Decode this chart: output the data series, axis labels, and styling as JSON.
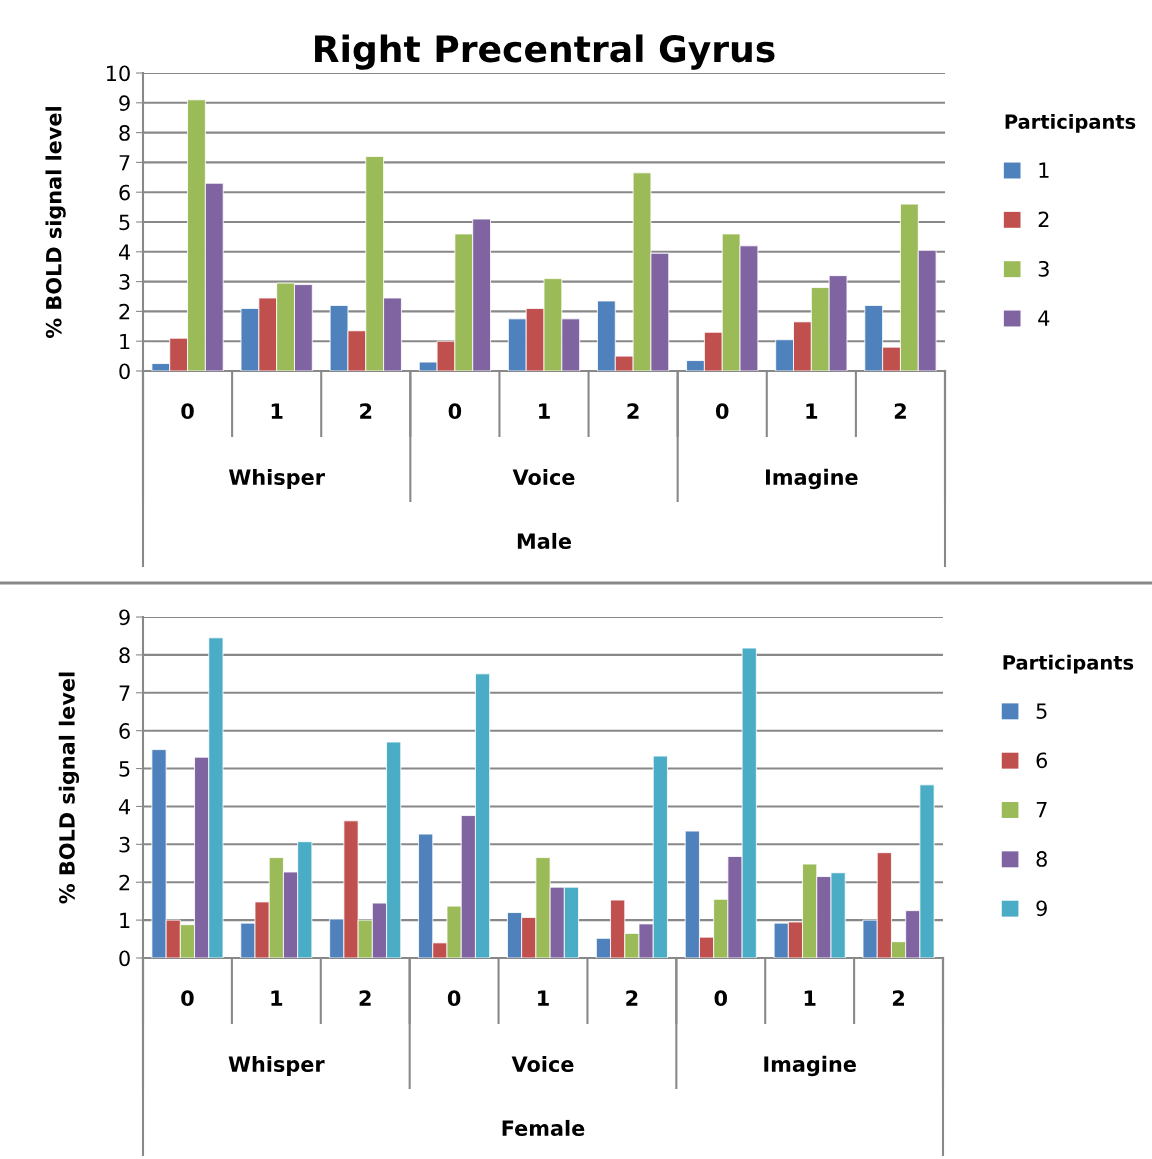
{
  "chart_data": [
    {
      "type": "bar",
      "title": "Right Precentral Gyrus",
      "ylabel": "% BOLD signal level",
      "xlabel": "Male",
      "legend_title": "Participants",
      "legend": "right",
      "categories": [
        "0",
        "1",
        "2",
        "0",
        "1",
        "2",
        "0",
        "1",
        "2"
      ],
      "annotations": [
        "Whisper",
        "Voice",
        "Imagine"
      ],
      "ylim": [
        0,
        10
      ],
      "yticks": [
        0,
        1,
        2,
        3,
        4,
        5,
        6,
        7,
        8,
        9,
        10
      ],
      "grid": "y",
      "series": [
        {
          "name": "1",
          "color": "#4f81bd",
          "values": [
            0.25,
            2.1,
            2.2,
            0.3,
            1.75,
            2.35,
            0.35,
            1.05,
            2.2
          ]
        },
        {
          "name": "2",
          "color": "#c0504d",
          "values": [
            1.1,
            2.45,
            1.35,
            1.0,
            2.1,
            0.5,
            1.3,
            1.65,
            0.8
          ]
        },
        {
          "name": "3",
          "color": "#9bbb59",
          "values": [
            9.1,
            2.95,
            7.2,
            4.6,
            3.1,
            6.65,
            4.6,
            2.8,
            5.6
          ]
        },
        {
          "name": "4",
          "color": "#8064a2",
          "values": [
            6.3,
            2.9,
            2.45,
            5.1,
            1.75,
            3.95,
            4.2,
            3.2,
            4.05
          ]
        }
      ]
    },
    {
      "type": "bar",
      "ylabel": "% BOLD signal level",
      "xlabel": "Female",
      "legend_title": "Participants",
      "legend": "right",
      "categories": [
        "0",
        "1",
        "2",
        "0",
        "1",
        "2",
        "0",
        "1",
        "2"
      ],
      "annotations": [
        "Whisper",
        "Voice",
        "Imagine"
      ],
      "ylim": [
        0,
        9
      ],
      "yticks": [
        0,
        1,
        2,
        3,
        4,
        5,
        6,
        7,
        8,
        9
      ],
      "grid": "y",
      "series": [
        {
          "name": "5",
          "color": "#4f81bd",
          "values": [
            5.5,
            0.92,
            1.03,
            3.27,
            1.2,
            0.52,
            3.35,
            0.92,
            1.0
          ]
        },
        {
          "name": "6",
          "color": "#c0504d",
          "values": [
            1.0,
            1.48,
            3.62,
            0.4,
            1.07,
            1.53,
            0.55,
            0.95,
            2.78
          ]
        },
        {
          "name": "7",
          "color": "#9bbb59",
          "values": [
            0.88,
            2.65,
            1.0,
            1.37,
            2.65,
            0.65,
            1.55,
            2.48,
            0.43
          ]
        },
        {
          "name": "8",
          "color": "#8064a2",
          "values": [
            5.3,
            2.27,
            1.45,
            3.76,
            1.87,
            0.9,
            2.68,
            2.15,
            1.25
          ]
        },
        {
          "name": "9",
          "color": "#4bacc6",
          "values": [
            8.45,
            3.07,
            5.7,
            7.5,
            1.87,
            5.33,
            8.18,
            2.25,
            4.57
          ]
        }
      ]
    }
  ]
}
